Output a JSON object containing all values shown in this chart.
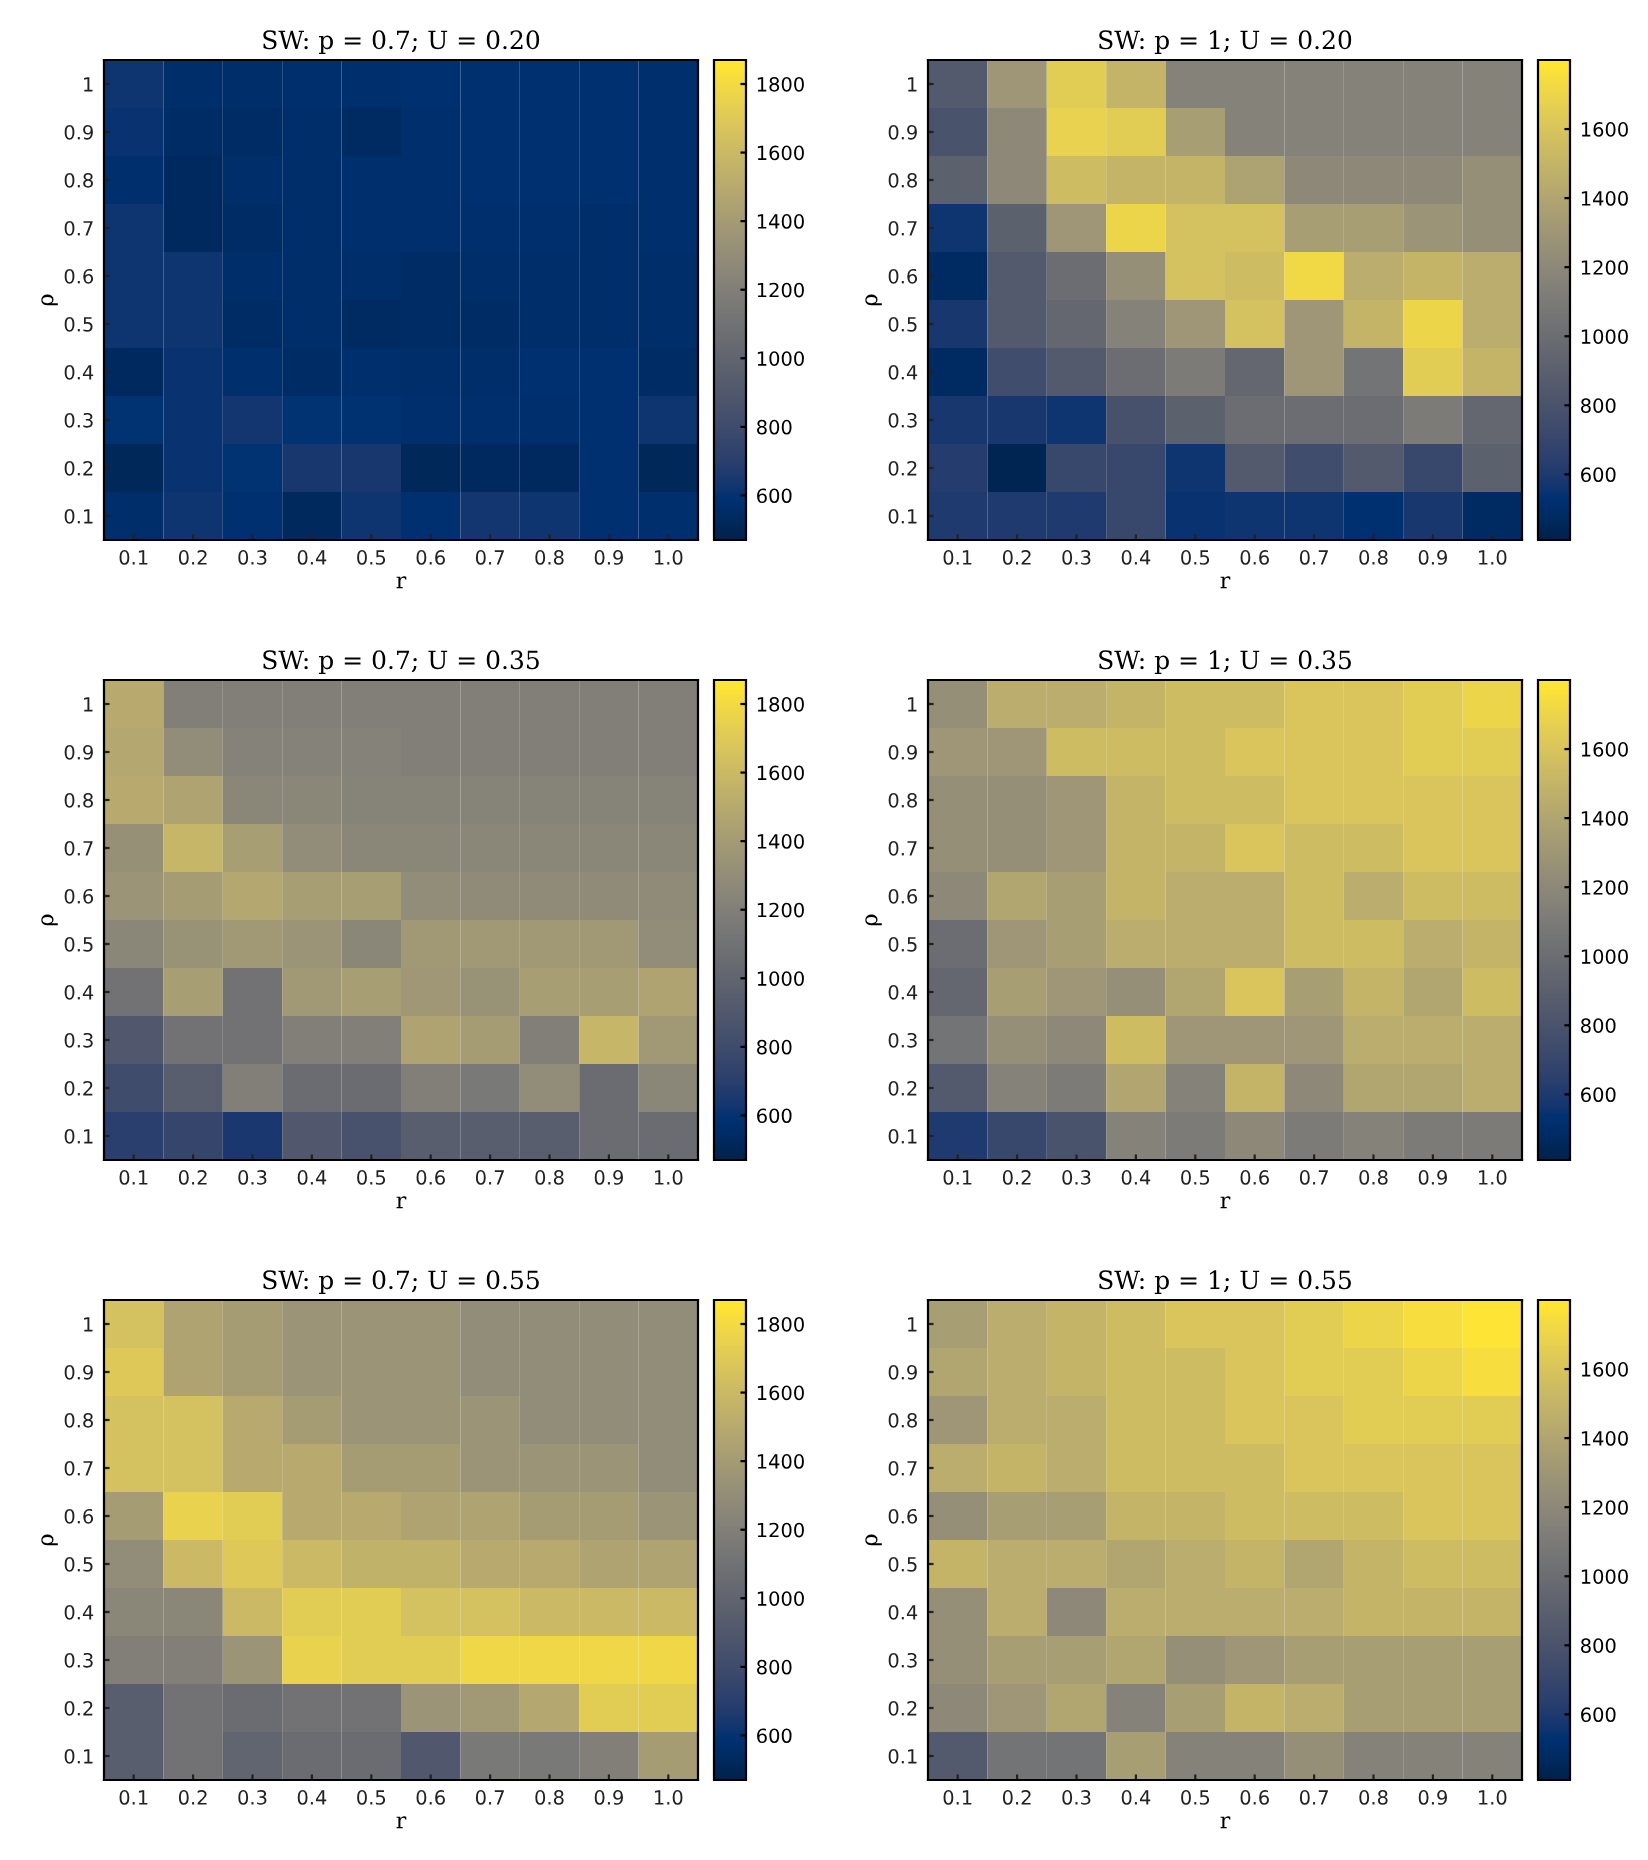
{
  "chart_data": [
    {
      "type": "heatmap",
      "title": "SW: p = 0.7; U = 0.20",
      "xlabel": "r",
      "ylabel": "ρ",
      "categories": [
        "0.1",
        "0.2",
        "0.3",
        "0.4",
        "0.5",
        "0.6",
        "0.7",
        "0.8",
        "0.9",
        "1.0"
      ],
      "y_categories": [
        "1",
        "0.9",
        "0.8",
        "0.7",
        "0.6",
        "0.5",
        "0.4",
        "0.3",
        "0.2",
        "0.1"
      ],
      "clim": [
        470,
        1870
      ],
      "cticks": [
        600,
        800,
        1000,
        1200,
        1400,
        1600,
        1800
      ],
      "cells": [
        [
          620,
          560,
          560,
          570,
          570,
          580,
          580,
          580,
          580,
          570
        ],
        [
          610,
          550,
          550,
          560,
          540,
          570,
          580,
          580,
          580,
          570
        ],
        [
          570,
          530,
          560,
          560,
          570,
          570,
          580,
          580,
          580,
          570
        ],
        [
          620,
          530,
          550,
          560,
          570,
          570,
          570,
          570,
          560,
          570
        ],
        [
          620,
          620,
          560,
          560,
          560,
          550,
          560,
          560,
          560,
          560
        ],
        [
          620,
          620,
          550,
          560,
          540,
          550,
          550,
          560,
          560,
          560
        ],
        [
          530,
          610,
          570,
          550,
          570,
          560,
          560,
          580,
          580,
          550
        ],
        [
          600,
          610,
          630,
          600,
          590,
          570,
          570,
          570,
          580,
          620
        ],
        [
          510,
          610,
          600,
          640,
          640,
          510,
          530,
          530,
          580,
          510
        ],
        [
          560,
          620,
          580,
          520,
          620,
          580,
          630,
          620,
          580,
          570
        ]
      ]
    },
    {
      "type": "heatmap",
      "title": "SW: p = 1; U = 0.20",
      "xlabel": "r",
      "ylabel": "ρ",
      "categories": [
        "0.1",
        "0.2",
        "0.3",
        "0.4",
        "0.5",
        "0.6",
        "0.7",
        "0.8",
        "0.9",
        "1.0"
      ],
      "y_categories": [
        "1",
        "0.9",
        "0.8",
        "0.7",
        "0.6",
        "0.5",
        "0.4",
        "0.3",
        "0.2",
        "0.1"
      ],
      "clim": [
        410,
        1800
      ],
      "cticks": [
        600,
        800,
        1000,
        1200,
        1400,
        1600
      ],
      "cells": [
        [
          850,
          1300,
          1650,
          1500,
          1150,
          1150,
          1150,
          1150,
          1150,
          1150
        ],
        [
          800,
          1200,
          1680,
          1650,
          1350,
          1150,
          1150,
          1150,
          1150,
          1150
        ],
        [
          900,
          1200,
          1550,
          1500,
          1500,
          1380,
          1200,
          1200,
          1200,
          1250
        ],
        [
          560,
          900,
          1300,
          1700,
          1580,
          1580,
          1350,
          1350,
          1280,
          1250
        ],
        [
          480,
          850,
          1000,
          1250,
          1580,
          1550,
          1720,
          1450,
          1500,
          1450
        ],
        [
          580,
          850,
          950,
          1150,
          1300,
          1580,
          1300,
          1500,
          1700,
          1450
        ],
        [
          480,
          750,
          850,
          1000,
          1100,
          950,
          1300,
          1050,
          1650,
          1500
        ],
        [
          580,
          580,
          560,
          780,
          900,
          1000,
          1000,
          1000,
          1100,
          950
        ],
        [
          620,
          430,
          700,
          700,
          560,
          850,
          750,
          850,
          700,
          900
        ],
        [
          600,
          600,
          600,
          700,
          550,
          560,
          560,
          520,
          580,
          480
        ]
      ]
    },
    {
      "type": "heatmap",
      "title": "SW: p = 0.7; U = 0.35",
      "xlabel": "r",
      "ylabel": "ρ",
      "categories": [
        "0.1",
        "0.2",
        "0.3",
        "0.4",
        "0.5",
        "0.6",
        "0.7",
        "0.8",
        "0.9",
        "1.0"
      ],
      "y_categories": [
        "1",
        "0.9",
        "0.8",
        "0.7",
        "0.6",
        "0.5",
        "0.4",
        "0.3",
        "0.2",
        "0.1"
      ],
      "clim": [
        470,
        1870
      ],
      "cticks": [
        600,
        800,
        1000,
        1200,
        1400,
        1600,
        1800
      ],
      "cells": [
        [
          1500,
          1200,
          1200,
          1200,
          1200,
          1200,
          1200,
          1200,
          1200,
          1200
        ],
        [
          1480,
          1300,
          1220,
          1220,
          1220,
          1200,
          1200,
          1200,
          1200,
          1200
        ],
        [
          1500,
          1450,
          1250,
          1250,
          1230,
          1230,
          1230,
          1230,
          1230,
          1230
        ],
        [
          1320,
          1580,
          1420,
          1300,
          1250,
          1250,
          1250,
          1250,
          1250,
          1250
        ],
        [
          1350,
          1400,
          1480,
          1420,
          1420,
          1300,
          1280,
          1280,
          1280,
          1280
        ],
        [
          1250,
          1330,
          1380,
          1350,
          1250,
          1380,
          1380,
          1380,
          1380,
          1300
        ],
        [
          1100,
          1420,
          1100,
          1380,
          1420,
          1370,
          1330,
          1420,
          1420,
          1450
        ],
        [
          900,
          1100,
          1100,
          1200,
          1200,
          1450,
          1400,
          1200,
          1580,
          1380
        ],
        [
          800,
          950,
          1200,
          1050,
          1050,
          1200,
          1150,
          1300,
          1050,
          1250
        ],
        [
          700,
          750,
          650,
          900,
          850,
          950,
          950,
          950,
          1050,
          1050
        ]
      ]
    },
    {
      "type": "heatmap",
      "title": "SW: p = 1; U = 0.35",
      "xlabel": "r",
      "ylabel": "ρ",
      "categories": [
        "0.1",
        "0.2",
        "0.3",
        "0.4",
        "0.5",
        "0.6",
        "0.7",
        "0.8",
        "0.9",
        "1.0"
      ],
      "y_categories": [
        "1",
        "0.9",
        "0.8",
        "0.7",
        "0.6",
        "0.5",
        "0.4",
        "0.3",
        "0.2",
        "0.1"
      ],
      "clim": [
        410,
        1800
      ],
      "cticks": [
        600,
        800,
        1000,
        1200,
        1400,
        1600
      ],
      "cells": [
        [
          1250,
          1450,
          1450,
          1500,
          1550,
          1550,
          1600,
          1600,
          1650,
          1700
        ],
        [
          1300,
          1300,
          1550,
          1550,
          1550,
          1600,
          1600,
          1600,
          1650,
          1650
        ],
        [
          1250,
          1250,
          1300,
          1500,
          1550,
          1550,
          1600,
          1600,
          1600,
          1600
        ],
        [
          1250,
          1250,
          1300,
          1500,
          1500,
          1600,
          1550,
          1550,
          1600,
          1600
        ],
        [
          1200,
          1400,
          1350,
          1500,
          1450,
          1450,
          1550,
          1450,
          1550,
          1550
        ],
        [
          1000,
          1300,
          1350,
          1450,
          1450,
          1450,
          1550,
          1550,
          1450,
          1500
        ],
        [
          950,
          1350,
          1300,
          1250,
          1400,
          1600,
          1350,
          1500,
          1400,
          1550
        ],
        [
          1050,
          1250,
          1200,
          1550,
          1300,
          1300,
          1300,
          1450,
          1450,
          1450
        ],
        [
          850,
          1150,
          1100,
          1400,
          1150,
          1500,
          1200,
          1400,
          1400,
          1450
        ],
        [
          600,
          700,
          800,
          1150,
          1100,
          1200,
          1100,
          1150,
          1100,
          1100
        ]
      ]
    },
    {
      "type": "heatmap",
      "title": "SW: p = 0.7; U = 0.55",
      "xlabel": "r",
      "ylabel": "ρ",
      "categories": [
        "0.1",
        "0.2",
        "0.3",
        "0.4",
        "0.5",
        "0.6",
        "0.7",
        "0.8",
        "0.9",
        "1.0"
      ],
      "y_categories": [
        "1",
        "0.9",
        "0.8",
        "0.7",
        "0.6",
        "0.5",
        "0.4",
        "0.3",
        "0.2",
        "0.1"
      ],
      "clim": [
        470,
        1870
      ],
      "cticks": [
        600,
        800,
        1000,
        1200,
        1400,
        1600,
        1800
      ],
      "cells": [
        [
          1650,
          1450,
          1400,
          1350,
          1350,
          1350,
          1300,
          1300,
          1300,
          1300
        ],
        [
          1700,
          1450,
          1400,
          1350,
          1350,
          1350,
          1300,
          1300,
          1300,
          1300
        ],
        [
          1650,
          1650,
          1500,
          1400,
          1350,
          1350,
          1350,
          1300,
          1300,
          1300
        ],
        [
          1650,
          1650,
          1500,
          1500,
          1400,
          1400,
          1350,
          1350,
          1350,
          1300
        ],
        [
          1400,
          1750,
          1720,
          1500,
          1500,
          1450,
          1450,
          1400,
          1400,
          1350
        ],
        [
          1300,
          1600,
          1700,
          1600,
          1550,
          1550,
          1500,
          1500,
          1450,
          1450
        ],
        [
          1250,
          1250,
          1600,
          1720,
          1720,
          1650,
          1650,
          1600,
          1600,
          1600
        ],
        [
          1200,
          1200,
          1350,
          1750,
          1720,
          1720,
          1780,
          1780,
          1780,
          1780
        ],
        [
          950,
          1100,
          1050,
          1100,
          1100,
          1350,
          1380,
          1480,
          1720,
          1720
        ],
        [
          950,
          1100,
          1000,
          1050,
          1050,
          900,
          1150,
          1150,
          1200,
          1400
        ]
      ]
    },
    {
      "type": "heatmap",
      "title": "SW: p = 1; U = 0.55",
      "xlabel": "r",
      "ylabel": "ρ",
      "categories": [
        "0.1",
        "0.2",
        "0.3",
        "0.4",
        "0.5",
        "0.6",
        "0.7",
        "0.8",
        "0.9",
        "1.0"
      ],
      "y_categories": [
        "1",
        "0.9",
        "0.8",
        "0.7",
        "0.6",
        "0.5",
        "0.4",
        "0.3",
        "0.2",
        "0.1"
      ],
      "clim": [
        410,
        1800
      ],
      "cticks": [
        600,
        800,
        1000,
        1200,
        1400,
        1600
      ],
      "cells": [
        [
          1350,
          1450,
          1500,
          1550,
          1600,
          1600,
          1650,
          1700,
          1750,
          1780
        ],
        [
          1400,
          1450,
          1500,
          1550,
          1550,
          1600,
          1650,
          1650,
          1700,
          1750
        ],
        [
          1300,
          1450,
          1450,
          1550,
          1550,
          1600,
          1600,
          1650,
          1650,
          1650
        ],
        [
          1450,
          1500,
          1450,
          1550,
          1550,
          1550,
          1600,
          1600,
          1600,
          1600
        ],
        [
          1250,
          1350,
          1350,
          1500,
          1500,
          1550,
          1550,
          1550,
          1600,
          1600
        ],
        [
          1500,
          1450,
          1450,
          1400,
          1450,
          1500,
          1400,
          1500,
          1550,
          1550
        ],
        [
          1250,
          1450,
          1200,
          1450,
          1450,
          1450,
          1450,
          1500,
          1500,
          1500
        ],
        [
          1250,
          1350,
          1350,
          1400,
          1250,
          1300,
          1350,
          1350,
          1350,
          1350
        ],
        [
          1200,
          1300,
          1400,
          1150,
          1350,
          1500,
          1450,
          1350,
          1350,
          1350
        ],
        [
          850,
          1050,
          1050,
          1350,
          1150,
          1150,
          1250,
          1150,
          1150,
          1150
        ]
      ]
    }
  ]
}
